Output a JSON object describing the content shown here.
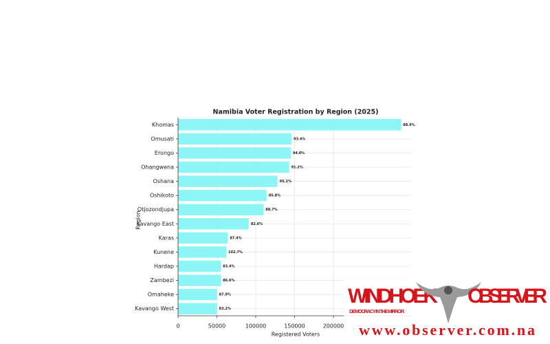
{
  "chart_data": {
    "type": "barh",
    "title": "Namibia Voter Registration by Region (2025)",
    "xlabel": "Registered Voters",
    "ylabel": "Region",
    "categories": [
      "Khomas",
      "Omusati",
      "Erongo",
      "Ohangwena",
      "Oshana",
      "Oshikoto",
      "Otjozondjupa",
      "Kavango East",
      "Karas",
      "Kunene",
      "Hardap",
      "Zambezi",
      "Omaheke",
      "Kavango West"
    ],
    "values": [
      287000,
      146000,
      145000,
      143000,
      128000,
      114000,
      110000,
      91000,
      64000,
      62000,
      55000,
      55000,
      50000,
      50000
    ],
    "bar_labels": [
      "88.9%",
      "93.4%",
      "94.0%",
      "91.2%",
      "95.1%",
      "85.8%",
      "88.7%",
      "82.6%",
      "87.4%",
      "102.7%",
      "83.4%",
      "86.6%",
      "87.9%",
      "83.2%"
    ],
    "color": "#8cf6f6",
    "xlim": [
      0,
      300000
    ],
    "xticks": [
      0,
      50000,
      100000,
      150000,
      200000
    ],
    "grid": true
  },
  "watermark": {
    "name_left": "WINDHOEK",
    "name_right": "OBSERVER",
    "slogan": "DEMOCRACY IN THE MIRROR",
    "url": "www.observer.com.na"
  }
}
